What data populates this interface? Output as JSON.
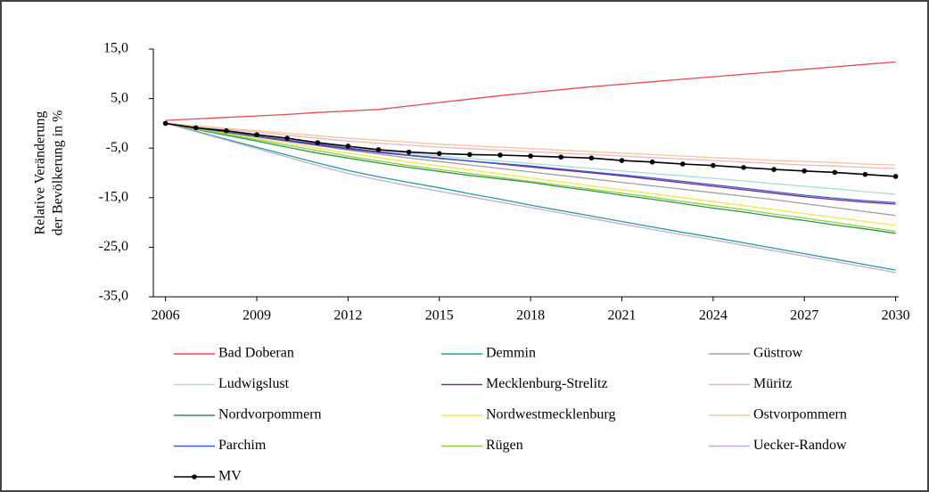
{
  "chart_data": {
    "type": "line",
    "y_label": [
      "Relative Veränderung",
      "der Bevölkerung in %"
    ],
    "x": [
      2006,
      2007,
      2008,
      2009,
      2010,
      2011,
      2012,
      2013,
      2014,
      2015,
      2016,
      2017,
      2018,
      2019,
      2020,
      2021,
      2022,
      2023,
      2024,
      2025,
      2026,
      2027,
      2028,
      2029,
      2030
    ],
    "xlim": [
      2005.6,
      2030.1
    ],
    "xticks": [
      2006,
      2009,
      2012,
      2015,
      2018,
      2021,
      2024,
      2027,
      2030
    ],
    "ylim": [
      -35,
      15
    ],
    "yticks": [
      {
        "value": -35,
        "label": "-35,0"
      },
      {
        "value": -25,
        "label": "-25,0"
      },
      {
        "value": -15,
        "label": "-15,0"
      },
      {
        "value": -5,
        "label": "-5,0"
      },
      {
        "value": 5,
        "label": "5,0"
      },
      {
        "value": 15,
        "label": "15,0"
      }
    ],
    "grid": false,
    "legend": "bottom",
    "series": [
      {
        "name": "Bad Doberan",
        "color": "#f04848",
        "values": [
          0.6,
          0.9,
          1.2,
          1.5,
          1.8,
          2.2,
          2.5,
          2.8,
          3.5,
          4.2,
          4.9,
          5.6,
          6.2,
          6.8,
          7.4,
          7.9,
          8.4,
          8.9,
          9.4,
          9.9,
          10.4,
          10.9,
          11.4,
          11.9,
          12.4
        ]
      },
      {
        "name": "Demmin",
        "color": "#22a08e",
        "values": [
          0,
          -1.6,
          -3.2,
          -4.8,
          -6.4,
          -8.0,
          -9.5,
          -10.8,
          -11.9,
          -13.0,
          -14.2,
          -15.3,
          -16.5,
          -17.6,
          -18.7,
          -19.8,
          -20.9,
          -22.0,
          -23.0,
          -24.1,
          -25.2,
          -26.3,
          -27.4,
          -28.5,
          -29.6
        ]
      },
      {
        "name": "Güstrow",
        "color": "#a0a0a0",
        "values": [
          0,
          -0.9,
          -1.8,
          -2.7,
          -3.6,
          -4.5,
          -5.4,
          -6.2,
          -7.0,
          -7.7,
          -8.4,
          -9.1,
          -9.8,
          -10.5,
          -11.2,
          -11.9,
          -12.6,
          -13.3,
          -14.0,
          -14.7,
          -15.4,
          -16.2,
          -17.0,
          -17.8,
          -18.6
        ]
      },
      {
        "name": "Ludwigslust",
        "color": "#a6dcdc",
        "values": [
          0,
          -0.8,
          -1.6,
          -2.4,
          -3.2,
          -4.0,
          -4.8,
          -5.4,
          -6.0,
          -6.6,
          -7.1,
          -7.6,
          -8.1,
          -8.6,
          -9.1,
          -9.6,
          -10.1,
          -10.6,
          -11.1,
          -11.6,
          -12.2,
          -12.7,
          -13.2,
          -13.8,
          -14.3
        ]
      },
      {
        "name": "Mecklenburg-Strelitz",
        "color": "#7a2a8a",
        "values": [
          0,
          -0.9,
          -1.8,
          -2.6,
          -3.4,
          -4.2,
          -5.0,
          -5.7,
          -6.4,
          -7.0,
          -7.6,
          -8.2,
          -8.8,
          -9.4,
          -10.0,
          -10.6,
          -11.3,
          -12.0,
          -12.7,
          -13.4,
          -14.1,
          -14.8,
          -15.4,
          -15.9,
          -16.3
        ]
      },
      {
        "name": "Müritz",
        "color": "#f2b4c4",
        "values": [
          0,
          -0.6,
          -1.2,
          -1.8,
          -2.4,
          -3.0,
          -3.6,
          -4.0,
          -4.4,
          -4.8,
          -5.1,
          -5.4,
          -5.7,
          -6.0,
          -6.3,
          -6.6,
          -6.9,
          -7.2,
          -7.5,
          -7.8,
          -8.1,
          -8.4,
          -8.6,
          -8.9,
          -9.1
        ]
      },
      {
        "name": "Nordvorpommern",
        "color": "#2a9a3a",
        "values": [
          0,
          -1.2,
          -2.4,
          -3.6,
          -4.8,
          -6.0,
          -7.0,
          -8.0,
          -8.9,
          -9.7,
          -10.5,
          -11.2,
          -11.9,
          -12.8,
          -13.6,
          -14.5,
          -15.3,
          -16.2,
          -17.1,
          -17.9,
          -18.8,
          -19.6,
          -20.5,
          -21.3,
          -22.2
        ]
      },
      {
        "name": "Nordwestmecklenburg",
        "color": "#f5e642",
        "values": [
          0,
          -1.0,
          -2.0,
          -3.0,
          -4.0,
          -5.0,
          -6.0,
          -6.9,
          -7.8,
          -8.6,
          -9.4,
          -10.2,
          -11.0,
          -11.8,
          -12.6,
          -13.4,
          -14.2,
          -15.0,
          -15.8,
          -16.6,
          -17.4,
          -18.2,
          -19.0,
          -19.8,
          -20.6
        ]
      },
      {
        "name": "Ostvorpommern",
        "color": "#f7c594",
        "values": [
          0,
          -0.5,
          -1.0,
          -1.5,
          -2.0,
          -2.5,
          -3.0,
          -3.4,
          -3.8,
          -4.2,
          -4.5,
          -4.8,
          -5.1,
          -5.4,
          -5.7,
          -6.0,
          -6.3,
          -6.6,
          -6.9,
          -7.2,
          -7.5,
          -7.7,
          -7.9,
          -8.2,
          -8.4
        ]
      },
      {
        "name": "Parchim",
        "color": "#3a5ccc",
        "values": [
          0,
          -0.9,
          -1.8,
          -2.7,
          -3.6,
          -4.4,
          -5.2,
          -5.9,
          -6.5,
          -7.1,
          -7.6,
          -8.1,
          -8.6,
          -9.2,
          -9.8,
          -10.4,
          -11.0,
          -11.7,
          -12.4,
          -13.1,
          -13.8,
          -14.5,
          -15.1,
          -15.6,
          -16.0
        ]
      },
      {
        "name": "Rügen",
        "color": "#8ccf4c",
        "values": [
          0,
          -1.1,
          -2.2,
          -3.3,
          -4.4,
          -5.5,
          -6.6,
          -7.6,
          -8.5,
          -9.3,
          -10.1,
          -10.9,
          -11.7,
          -12.5,
          -13.3,
          -14.1,
          -14.9,
          -15.8,
          -16.6,
          -17.4,
          -18.3,
          -19.1,
          -20.0,
          -20.9,
          -21.8
        ]
      },
      {
        "name": "Uecker-Randow",
        "color": "#c8a8e6",
        "values": [
          0,
          -1.7,
          -3.4,
          -5.1,
          -6.8,
          -8.5,
          -10.1,
          -11.4,
          -12.6,
          -13.7,
          -14.8,
          -15.9,
          -17.0,
          -18.1,
          -19.2,
          -20.3,
          -21.4,
          -22.5,
          -23.5,
          -24.6,
          -25.7,
          -26.8,
          -27.9,
          -29.0,
          -30.1
        ]
      },
      {
        "name": "MV",
        "color": "#000000",
        "marker": true,
        "values": [
          0,
          -0.9,
          -1.5,
          -2.3,
          -3.0,
          -3.9,
          -4.6,
          -5.3,
          -5.8,
          -6.1,
          -6.3,
          -6.4,
          -6.6,
          -6.8,
          -7.0,
          -7.5,
          -7.8,
          -8.2,
          -8.5,
          -8.9,
          -9.3,
          -9.6,
          -9.9,
          -10.3,
          -10.7
        ]
      }
    ]
  }
}
